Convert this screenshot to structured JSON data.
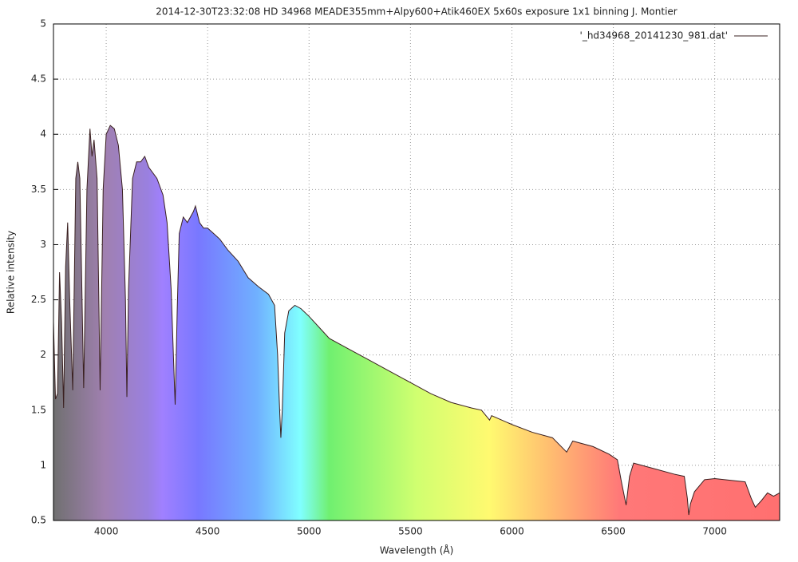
{
  "chart_data": {
    "type": "line",
    "title": "2014-12-30T23:32:08 HD 34968 MEADE355mm+Alpy600+Atik460EX 5x60s exposure 1x1 binning J. Montier",
    "xlabel": "Wavelength (Å)",
    "ylabel": "Relative intensity",
    "x": [
      3740,
      3750,
      3760,
      3770,
      3780,
      3790,
      3800,
      3810,
      3820,
      3835,
      3850,
      3860,
      3870,
      3889,
      3905,
      3920,
      3930,
      3940,
      3955,
      3970,
      3985,
      4000,
      4020,
      4040,
      4060,
      4080,
      4095,
      4102,
      4110,
      4130,
      4150,
      4170,
      4190,
      4210,
      4250,
      4280,
      4300,
      4320,
      4335,
      4340,
      4350,
      4360,
      4380,
      4400,
      4430,
      4440,
      4460,
      4480,
      4500,
      4530,
      4560,
      4600,
      4650,
      4700,
      4750,
      4800,
      4830,
      4845,
      4855,
      4861,
      4868,
      4880,
      4900,
      4930,
      4960,
      5000,
      5050,
      5100,
      5200,
      5300,
      5400,
      5500,
      5600,
      5700,
      5800,
      5850,
      5890,
      5900,
      6000,
      6100,
      6200,
      6270,
      6300,
      6400,
      6480,
      6520,
      6540,
      6563,
      6580,
      6600,
      6700,
      6800,
      6850,
      6865,
      6872,
      6880,
      6900,
      6950,
      7000,
      7100,
      7150,
      7180,
      7200,
      7230,
      7260,
      7290,
      7320
    ],
    "series": [
      {
        "name": "'_hd34968_20141230_981.dat'",
        "color": "#3a2020",
        "values": [
          2.3,
          1.6,
          1.65,
          2.75,
          2.3,
          1.52,
          2.8,
          3.2,
          2.5,
          1.68,
          3.6,
          3.75,
          3.6,
          1.7,
          3.5,
          4.05,
          3.8,
          3.95,
          3.6,
          1.68,
          3.5,
          4.0,
          4.08,
          4.05,
          3.9,
          3.5,
          2.5,
          1.62,
          2.6,
          3.6,
          3.75,
          3.75,
          3.8,
          3.7,
          3.6,
          3.45,
          3.2,
          2.6,
          1.8,
          1.55,
          2.4,
          3.1,
          3.25,
          3.2,
          3.3,
          3.35,
          3.2,
          3.15,
          3.15,
          3.1,
          3.05,
          2.95,
          2.85,
          2.7,
          2.62,
          2.55,
          2.45,
          2.0,
          1.5,
          1.25,
          1.5,
          2.2,
          2.4,
          2.45,
          2.42,
          2.35,
          2.25,
          2.15,
          2.05,
          1.95,
          1.85,
          1.75,
          1.65,
          1.57,
          1.52,
          1.5,
          1.41,
          1.45,
          1.37,
          1.3,
          1.25,
          1.12,
          1.22,
          1.17,
          1.1,
          1.05,
          0.85,
          0.64,
          0.9,
          1.02,
          0.97,
          0.92,
          0.9,
          0.7,
          0.55,
          0.65,
          0.76,
          0.87,
          0.88,
          0.86,
          0.85,
          0.7,
          0.62,
          0.68,
          0.75,
          0.72,
          0.75
        ]
      }
    ],
    "xlim": [
      3740,
      7320
    ],
    "ylim": [
      0.5,
      5
    ],
    "xticks": [
      4000,
      4500,
      5000,
      5500,
      6000,
      6500,
      7000
    ],
    "yticks": [
      0.5,
      1,
      1.5,
      2,
      2.5,
      3,
      3.5,
      4,
      4.5,
      5
    ],
    "grid": true,
    "legend": "top right"
  }
}
